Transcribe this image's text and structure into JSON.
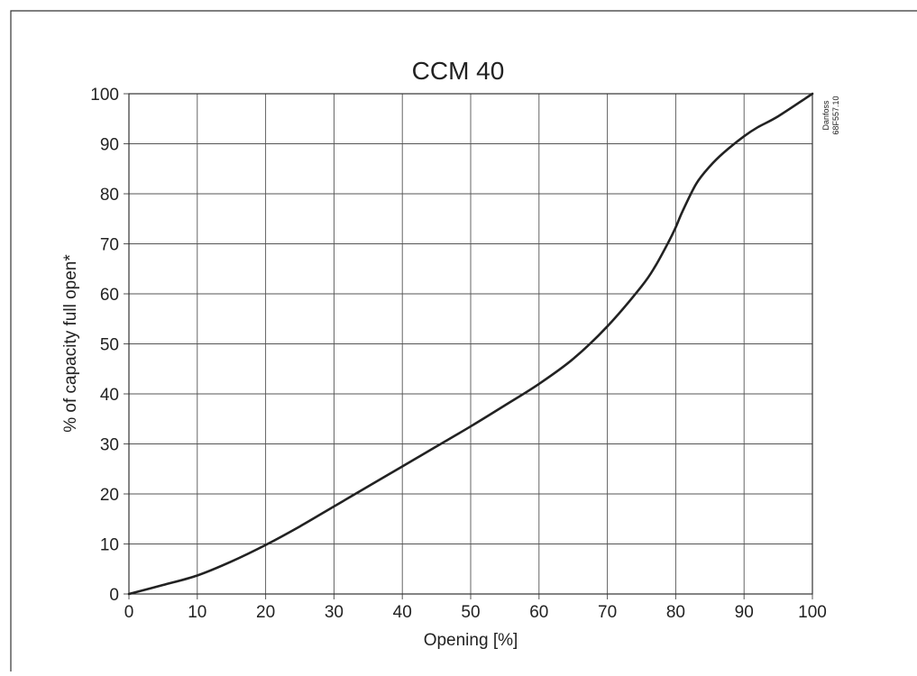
{
  "chart_data": {
    "type": "line",
    "title": "CCM 40",
    "xlabel": "Opening [%]",
    "ylabel": "% of capacity full open*",
    "xlim": [
      0,
      100
    ],
    "ylim": [
      0,
      100
    ],
    "x_ticks": [
      0,
      10,
      20,
      30,
      40,
      50,
      60,
      70,
      80,
      90,
      100
    ],
    "y_ticks": [
      0,
      10,
      20,
      30,
      40,
      50,
      60,
      70,
      80,
      90,
      100
    ],
    "grid": true,
    "series": [
      {
        "x": [
          0,
          5,
          10,
          15,
          20,
          25,
          30,
          35,
          40,
          45,
          50,
          55,
          60,
          65,
          70,
          75,
          77,
          79,
          80,
          81,
          83,
          85,
          87,
          90,
          92,
          95,
          100
        ],
        "y": [
          0,
          1.8,
          3.7,
          6.5,
          9.8,
          13.5,
          17.5,
          21.5,
          25.5,
          29.5,
          33.5,
          37.7,
          42,
          47,
          53.5,
          61.5,
          65.5,
          70.5,
          73.3,
          76.5,
          82,
          85.5,
          88.2,
          91.5,
          93.3,
          95.5,
          100
        ]
      }
    ],
    "annotation_lines": [
      "Danfoss",
      "68F557.10"
    ],
    "colors": {
      "line": "#222222",
      "grid": "#555555",
      "frame": "#333333"
    }
  }
}
